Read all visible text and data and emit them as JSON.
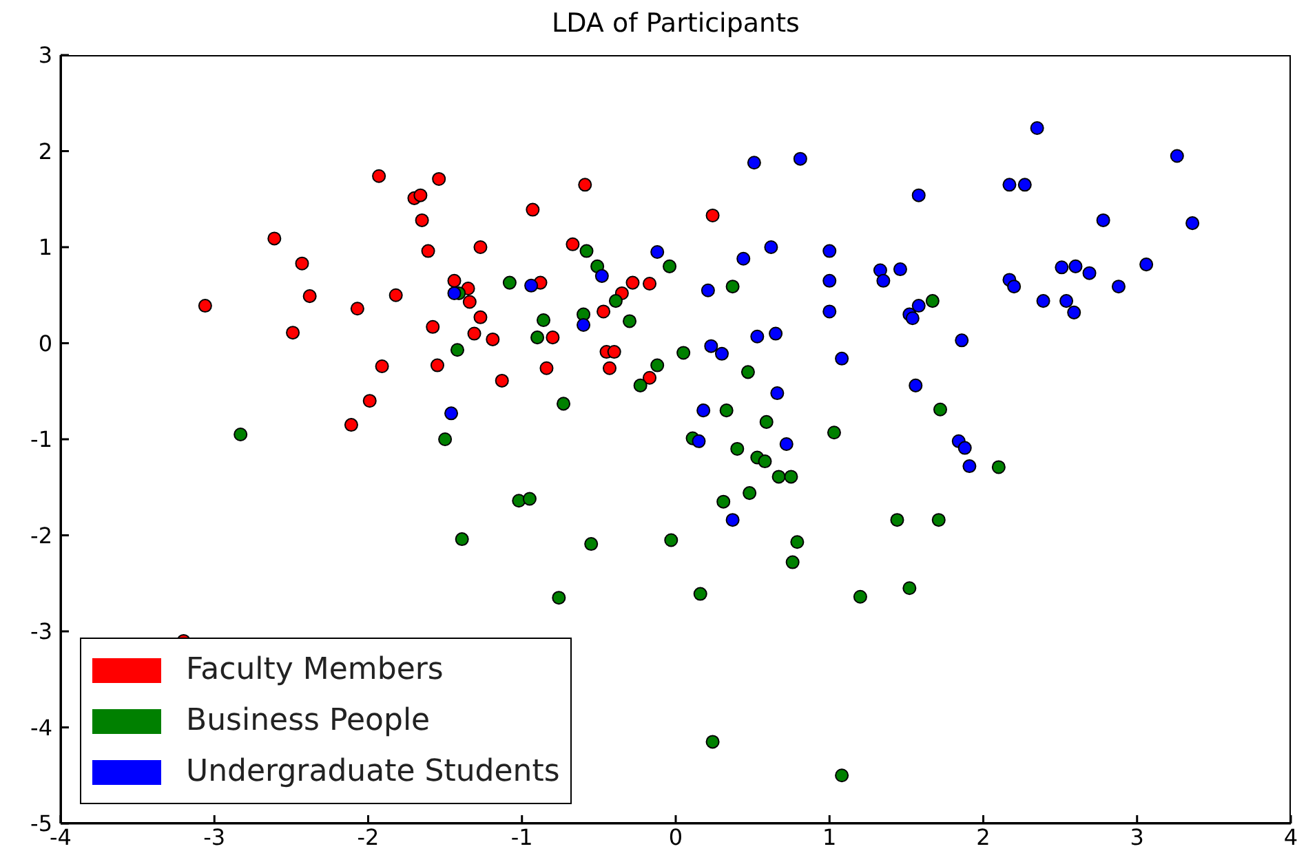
{
  "chart_data": {
    "type": "scatter",
    "title": "LDA of Participants",
    "xlim": [
      -4,
      4
    ],
    "ylim": [
      -5,
      3
    ],
    "xticks": [
      -4,
      -3,
      -2,
      -1,
      0,
      1,
      2,
      3,
      4
    ],
    "yticks": [
      -5,
      -4,
      -3,
      -2,
      -1,
      0,
      1,
      2,
      3
    ],
    "legend": "bottom left",
    "marker": "circle",
    "grid": false,
    "series": [
      {
        "name": "Faculty Members",
        "color": "#ff0000",
        "x": [
          -3.06,
          -2.61,
          -2.43,
          -2.38,
          -2.49,
          -2.11,
          -1.99,
          -2.07,
          -1.91,
          -1.93,
          -1.82,
          -1.7,
          -1.66,
          -1.65,
          -1.54,
          -1.61,
          -1.58,
          -1.55,
          -1.44,
          -1.35,
          -1.34,
          -1.31,
          -1.27,
          -1.27,
          -1.19,
          -1.13,
          -0.93,
          -0.88,
          -0.84,
          -0.8,
          -0.67,
          -0.59,
          -0.47,
          -0.45,
          -0.4,
          -0.43,
          -0.35,
          -0.28,
          -0.17,
          -0.17,
          0.24,
          -3.2
        ],
        "values": [
          0.39,
          1.09,
          0.83,
          0.49,
          0.11,
          -0.85,
          -0.6,
          0.36,
          -0.24,
          1.74,
          0.5,
          1.51,
          1.54,
          1.28,
          1.71,
          0.96,
          0.17,
          -0.23,
          0.65,
          0.57,
          0.43,
          0.1,
          0.27,
          1.0,
          0.04,
          -0.39,
          1.39,
          0.63,
          -0.26,
          0.06,
          1.03,
          1.65,
          0.33,
          -0.09,
          -0.09,
          -0.26,
          0.52,
          0.63,
          0.62,
          -0.36,
          1.33,
          -3.1
        ]
      },
      {
        "name": "Business People",
        "color": "#008000",
        "x": [
          -2.83,
          -1.5,
          -1.42,
          -1.39,
          -1.41,
          -1.08,
          -1.02,
          -0.95,
          -0.86,
          -0.9,
          -0.73,
          -0.76,
          -0.58,
          -0.55,
          -0.51,
          -0.6,
          -0.39,
          -0.3,
          -0.23,
          -0.12,
          -0.04,
          -0.03,
          0.05,
          0.11,
          0.16,
          0.24,
          0.33,
          0.37,
          0.31,
          0.4,
          0.47,
          0.48,
          0.53,
          0.58,
          0.59,
          0.67,
          0.75,
          0.79,
          0.76,
          1.03,
          1.08,
          1.2,
          1.44,
          1.52,
          1.67,
          1.72,
          1.71,
          2.1
        ],
        "values": [
          -0.95,
          -1.0,
          -0.07,
          -2.04,
          0.52,
          0.63,
          -1.64,
          -1.62,
          0.24,
          0.06,
          -0.63,
          -2.65,
          0.96,
          -2.09,
          0.8,
          0.3,
          0.44,
          0.23,
          -0.44,
          -0.23,
          0.8,
          -2.05,
          -0.1,
          -0.99,
          -2.61,
          -4.15,
          -0.7,
          0.59,
          -1.65,
          -1.1,
          -0.3,
          -1.56,
          -1.19,
          -1.23,
          -0.82,
          -1.39,
          -1.39,
          -2.07,
          -2.28,
          -0.93,
          -4.5,
          -2.64,
          -1.84,
          -2.55,
          0.44,
          -0.69,
          -1.84,
          -1.29
        ]
      },
      {
        "name": "Undergraduate Students",
        "color": "#0000ff",
        "x": [
          -1.46,
          -1.44,
          -0.94,
          -0.6,
          -0.48,
          -0.12,
          0.15,
          0.18,
          0.21,
          0.23,
          0.3,
          0.37,
          0.51,
          0.53,
          0.44,
          0.65,
          0.66,
          0.72,
          0.81,
          0.62,
          1.0,
          1.0,
          1.0,
          1.08,
          1.33,
          1.35,
          1.46,
          1.52,
          1.54,
          1.58,
          1.58,
          1.56,
          1.86,
          1.84,
          1.88,
          1.91,
          2.17,
          2.2,
          2.17,
          2.27,
          2.35,
          2.39,
          2.51,
          2.6,
          2.54,
          2.59,
          2.69,
          2.78,
          2.88,
          3.06,
          3.26,
          3.36
        ],
        "values": [
          -0.73,
          0.52,
          0.6,
          0.19,
          0.7,
          0.95,
          -1.02,
          -0.7,
          0.55,
          -0.03,
          -0.11,
          -1.84,
          1.88,
          0.07,
          0.88,
          0.1,
          -0.52,
          -1.05,
          1.92,
          1.0,
          0.96,
          0.65,
          0.33,
          -0.16,
          0.76,
          0.65,
          0.77,
          0.3,
          0.26,
          0.39,
          1.54,
          -0.44,
          0.03,
          -1.02,
          -1.09,
          -1.28,
          0.66,
          0.59,
          1.65,
          1.65,
          2.24,
          0.44,
          0.79,
          0.8,
          0.44,
          0.32,
          0.73,
          1.28,
          0.59,
          0.82,
          1.95,
          1.25
        ]
      }
    ]
  }
}
